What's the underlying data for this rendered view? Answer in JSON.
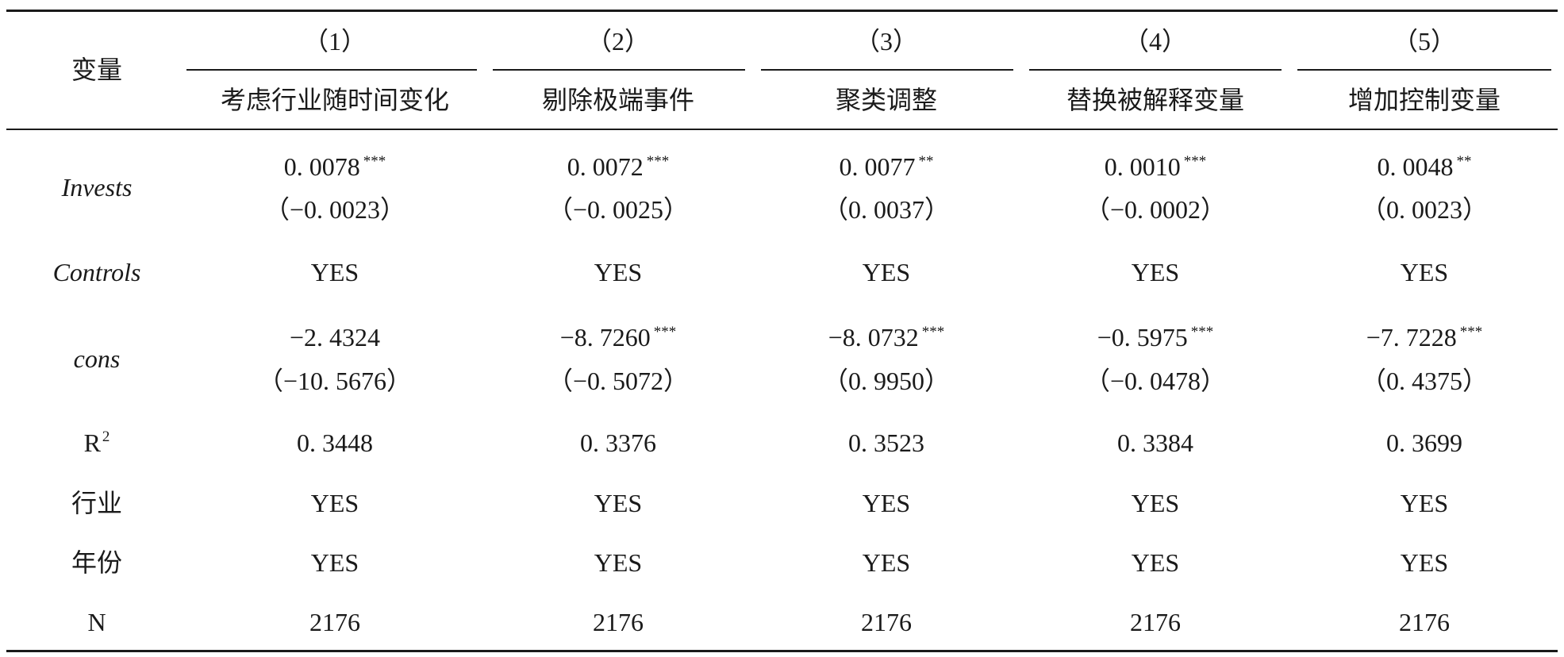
{
  "header": {
    "label": "变量",
    "columns": [
      {
        "number": "（1）",
        "title": "考虑行业随时间变化"
      },
      {
        "number": "（2）",
        "title": "剔除极端事件"
      },
      {
        "number": "（3）",
        "title": "聚类调整"
      },
      {
        "number": "（4）",
        "title": "替换被解释变量"
      },
      {
        "number": "（5）",
        "title": "增加控制变量"
      }
    ]
  },
  "rows": [
    {
      "label": "Invests",
      "cells": [
        {
          "coef": "0. 0078",
          "stars": "***",
          "se": "（−0. 0023）"
        },
        {
          "coef": "0. 0072",
          "stars": "***",
          "se": "（−0. 0025）"
        },
        {
          "coef": "0. 0077",
          "stars": "**",
          "se": "（0. 0037）"
        },
        {
          "coef": "0. 0010",
          "stars": "***",
          "se": "（−0. 0002）"
        },
        {
          "coef": "0. 0048",
          "stars": "**",
          "se": "（0. 0023）"
        }
      ]
    },
    {
      "label": "Controls",
      "cells": [
        "YES",
        "YES",
        "YES",
        "YES",
        "YES"
      ]
    },
    {
      "label": "cons",
      "cells": [
        {
          "coef": "−2. 4324",
          "se": "（−10. 5676）"
        },
        {
          "coef": "−8. 7260",
          "stars": "***",
          "se": "（−0. 5072）"
        },
        {
          "coef": "−8. 0732",
          "stars": "***",
          "se": "（0. 9950）"
        },
        {
          "coef": "−0. 5975",
          "stars": "***",
          "se": "（−0. 0478）"
        },
        {
          "coef": "−7. 7228",
          "stars": "***",
          "se": "（0. 4375）"
        }
      ]
    },
    {
      "label": "R",
      "label_sup": "2",
      "cells": [
        "0. 3448",
        "0. 3376",
        "0. 3523",
        "0. 3384",
        "0. 3699"
      ]
    },
    {
      "label": "行业",
      "cells": [
        "YES",
        "YES",
        "YES",
        "YES",
        "YES"
      ]
    },
    {
      "label": "年份",
      "cells": [
        "YES",
        "YES",
        "YES",
        "YES",
        "YES"
      ]
    },
    {
      "label": "N",
      "cells": [
        "2176",
        "2176",
        "2176",
        "2176",
        "2176"
      ]
    }
  ]
}
